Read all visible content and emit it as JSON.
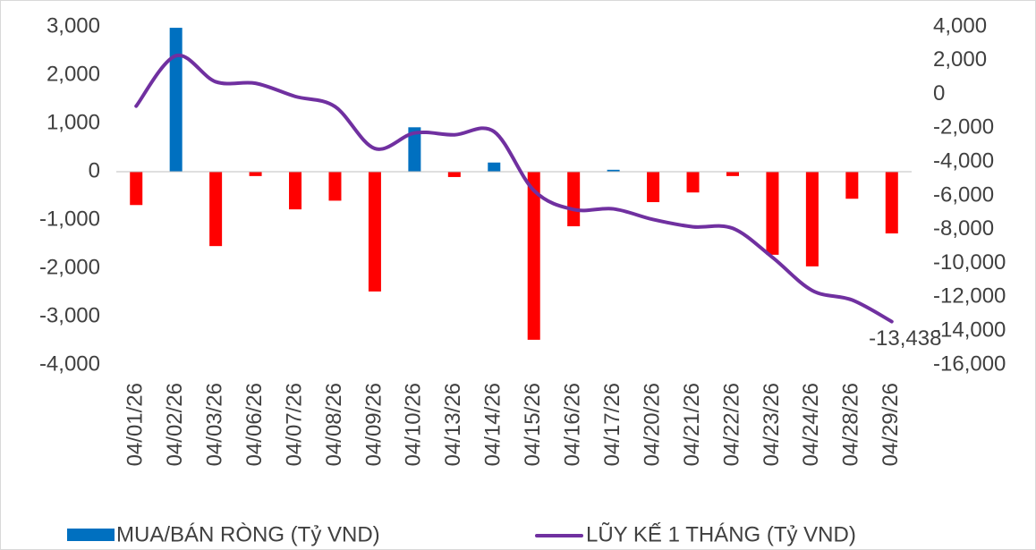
{
  "chart_data": {
    "type": "bar_line",
    "categories": [
      "04/01/26",
      "04/02/26",
      "04/03/26",
      "04/06/26",
      "04/07/26",
      "04/08/26",
      "04/09/26",
      "04/10/26",
      "04/13/26",
      "04/14/26",
      "04/15/26",
      "04/16/26",
      "04/17/26",
      "04/20/26",
      "04/21/26",
      "04/22/26",
      "04/23/26",
      "04/24/26",
      "04/28/26",
      "04/29/26"
    ],
    "series": [
      {
        "name": "MUA/BÁN RÒNG (Tỷ VND)",
        "type": "bar",
        "color": "#0070c0",
        "negative_color": "#ff0000",
        "values": [
          -690,
          2980,
          -1540,
          -90,
          -780,
          -600,
          -2480,
          920,
          -110,
          190,
          -3480,
          -1130,
          40,
          -630,
          -430,
          -90,
          -1720,
          -1960,
          -560,
          -1278
        ]
      },
      {
        "name": "LŨY KẾ 1 THÁNG (Tỷ VND)",
        "type": "line",
        "axis": "y2",
        "color": "#7030a0",
        "values": [
          -690,
          2290,
          750,
          660,
          -120,
          -720,
          -3200,
          -2280,
          -2390,
          -2200,
          -5680,
          -6810,
          -6770,
          -7400,
          -7830,
          -7920,
          -9640,
          -11600,
          -12160,
          -13438
        ],
        "value_labels": [
          null,
          null,
          null,
          null,
          null,
          null,
          null,
          null,
          null,
          null,
          null,
          null,
          null,
          null,
          null,
          null,
          null,
          null,
          null,
          "-13,438"
        ]
      }
    ],
    "ylim": [
      -4000,
      3000
    ],
    "yticks": [
      {
        "value": -4000,
        "label": "-4,000"
      },
      {
        "value": -3000,
        "label": "-3,000"
      },
      {
        "value": -2000,
        "label": "-2,000"
      },
      {
        "value": -1000,
        "label": "-1,000"
      },
      0,
      {
        "value": 1000,
        "label": "1,000"
      },
      {
        "value": 2000,
        "label": "2,000"
      },
      {
        "value": 3000,
        "label": "3,000"
      }
    ],
    "y2lim": [
      -16000,
      4000
    ],
    "y2ticks": [
      {
        "value": -16000,
        "label": "-16,000"
      },
      {
        "value": -14000,
        "label": "-14,000"
      },
      {
        "value": -12000,
        "label": "-12,000"
      },
      {
        "value": -10000,
        "label": "-10,000"
      },
      {
        "value": -8000,
        "label": "-8,000"
      },
      {
        "value": -6000,
        "label": "-6,000"
      },
      {
        "value": -4000,
        "label": "-4,000"
      },
      {
        "value": -2000,
        "label": "-2,000"
      },
      0,
      {
        "value": 2000,
        "label": "2,000"
      },
      {
        "value": 4000,
        "label": "4,000"
      }
    ],
    "legend": "bottom"
  }
}
